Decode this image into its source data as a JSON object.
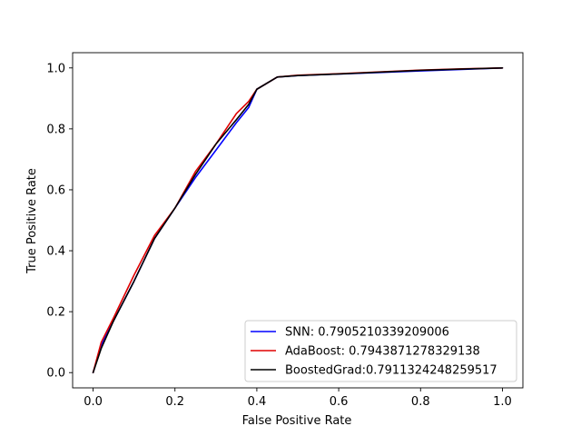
{
  "chart_data": {
    "type": "line",
    "title": "",
    "xlabel": "False Positive Rate",
    "ylabel": "True Positive Rate",
    "xlim": [
      -0.05,
      1.05
    ],
    "ylim": [
      -0.05,
      1.05
    ],
    "xticks": [
      0.0,
      0.2,
      0.4,
      0.6,
      0.8,
      1.0
    ],
    "xtick_labels": [
      "0.0",
      "0.2",
      "0.4",
      "0.6",
      "0.8",
      "1.0"
    ],
    "yticks": [
      0.0,
      0.2,
      0.4,
      0.6,
      0.8,
      1.0
    ],
    "ytick_labels": [
      "0.0",
      "0.2",
      "0.4",
      "0.6",
      "0.8",
      "1.0"
    ],
    "grid": false,
    "legend_position": "lower-right",
    "series": [
      {
        "name": "SNN: 0.7905210339209006",
        "color": "#0000ff",
        "x": [
          0.0,
          0.02,
          0.05,
          0.1,
          0.15,
          0.2,
          0.25,
          0.3,
          0.35,
          0.38,
          0.4,
          0.45,
          0.5,
          0.6,
          0.7,
          0.8,
          0.9,
          1.0
        ],
        "y": [
          0.0,
          0.09,
          0.17,
          0.3,
          0.44,
          0.54,
          0.64,
          0.73,
          0.82,
          0.87,
          0.93,
          0.97,
          0.975,
          0.98,
          0.985,
          0.99,
          0.995,
          1.0
        ]
      },
      {
        "name": "AdaBoost: 0.7943871278329138",
        "color": "#e00000",
        "x": [
          0.0,
          0.02,
          0.05,
          0.1,
          0.15,
          0.2,
          0.25,
          0.3,
          0.35,
          0.38,
          0.4,
          0.45,
          0.5,
          0.6,
          0.7,
          0.8,
          0.9,
          1.0
        ],
        "y": [
          0.0,
          0.1,
          0.18,
          0.32,
          0.45,
          0.54,
          0.66,
          0.75,
          0.85,
          0.89,
          0.93,
          0.97,
          0.976,
          0.981,
          0.987,
          0.993,
          0.997,
          1.0
        ]
      },
      {
        "name": "BoostedGrad:0.7911324248259517",
        "color": "#000000",
        "x": [
          0.0,
          0.02,
          0.05,
          0.1,
          0.15,
          0.2,
          0.25,
          0.3,
          0.35,
          0.38,
          0.4,
          0.45,
          0.5,
          0.6,
          0.7,
          0.8,
          0.9,
          1.0
        ],
        "y": [
          0.0,
          0.08,
          0.17,
          0.3,
          0.44,
          0.54,
          0.65,
          0.75,
          0.83,
          0.88,
          0.93,
          0.97,
          0.975,
          0.98,
          0.986,
          0.992,
          0.996,
          1.0
        ]
      }
    ]
  }
}
